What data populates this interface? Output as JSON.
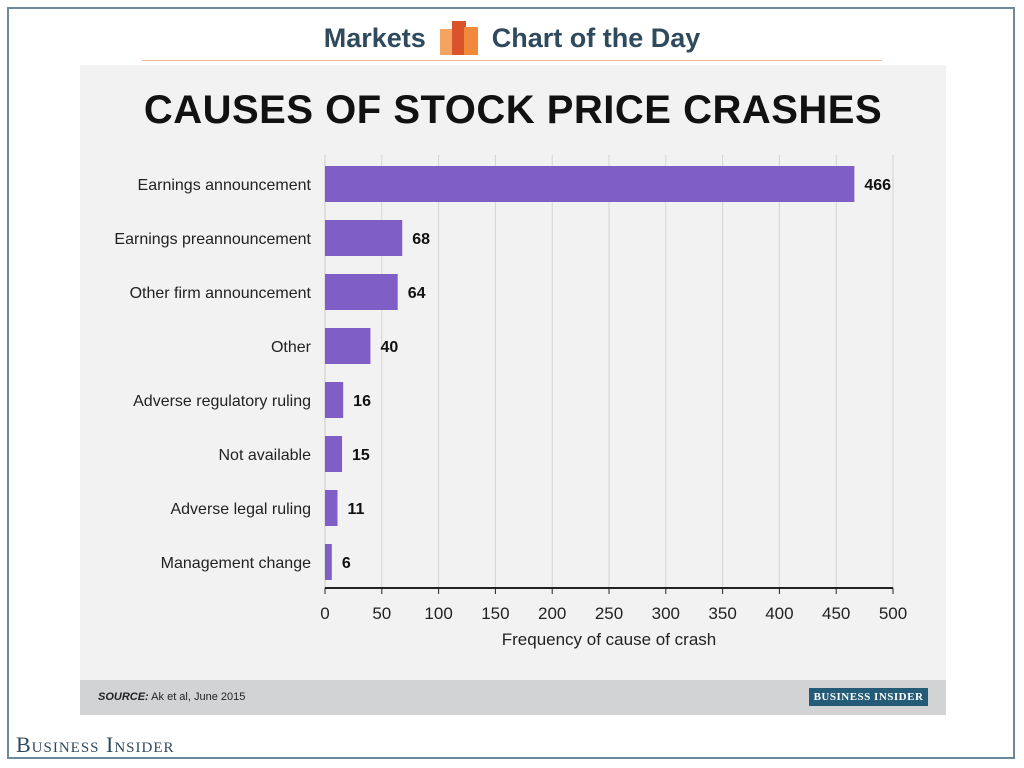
{
  "header": {
    "left": "Markets",
    "right": "Chart of the Day",
    "logo_colors": [
      "#f4a460",
      "#d9542b",
      "#f08a3a"
    ]
  },
  "chart_data": {
    "type": "bar",
    "orientation": "horizontal",
    "title": "CAUSES OF STOCK PRICE CRASHES",
    "xlabel": "Frequency of cause of crash",
    "ylabel": "",
    "categories": [
      "Earnings announcement",
      "Earnings preannouncement",
      "Other firm announcement",
      "Other",
      "Adverse regulatory ruling",
      "Not available",
      "Adverse legal ruling",
      "Management change"
    ],
    "values": [
      466,
      68,
      64,
      40,
      16,
      15,
      11,
      6
    ],
    "xlim": [
      0,
      500
    ],
    "xticks": [
      0,
      50,
      100,
      150,
      200,
      250,
      300,
      350,
      400,
      450,
      500
    ],
    "grid": "vertical",
    "bar_color": "#7f5fc6",
    "data_labels": true
  },
  "footer": {
    "source_label": "SOURCE:",
    "source_text": " Ak et al, June 2015",
    "brand": "BUSINESS INSIDER"
  },
  "page_brand": "Business Insider"
}
